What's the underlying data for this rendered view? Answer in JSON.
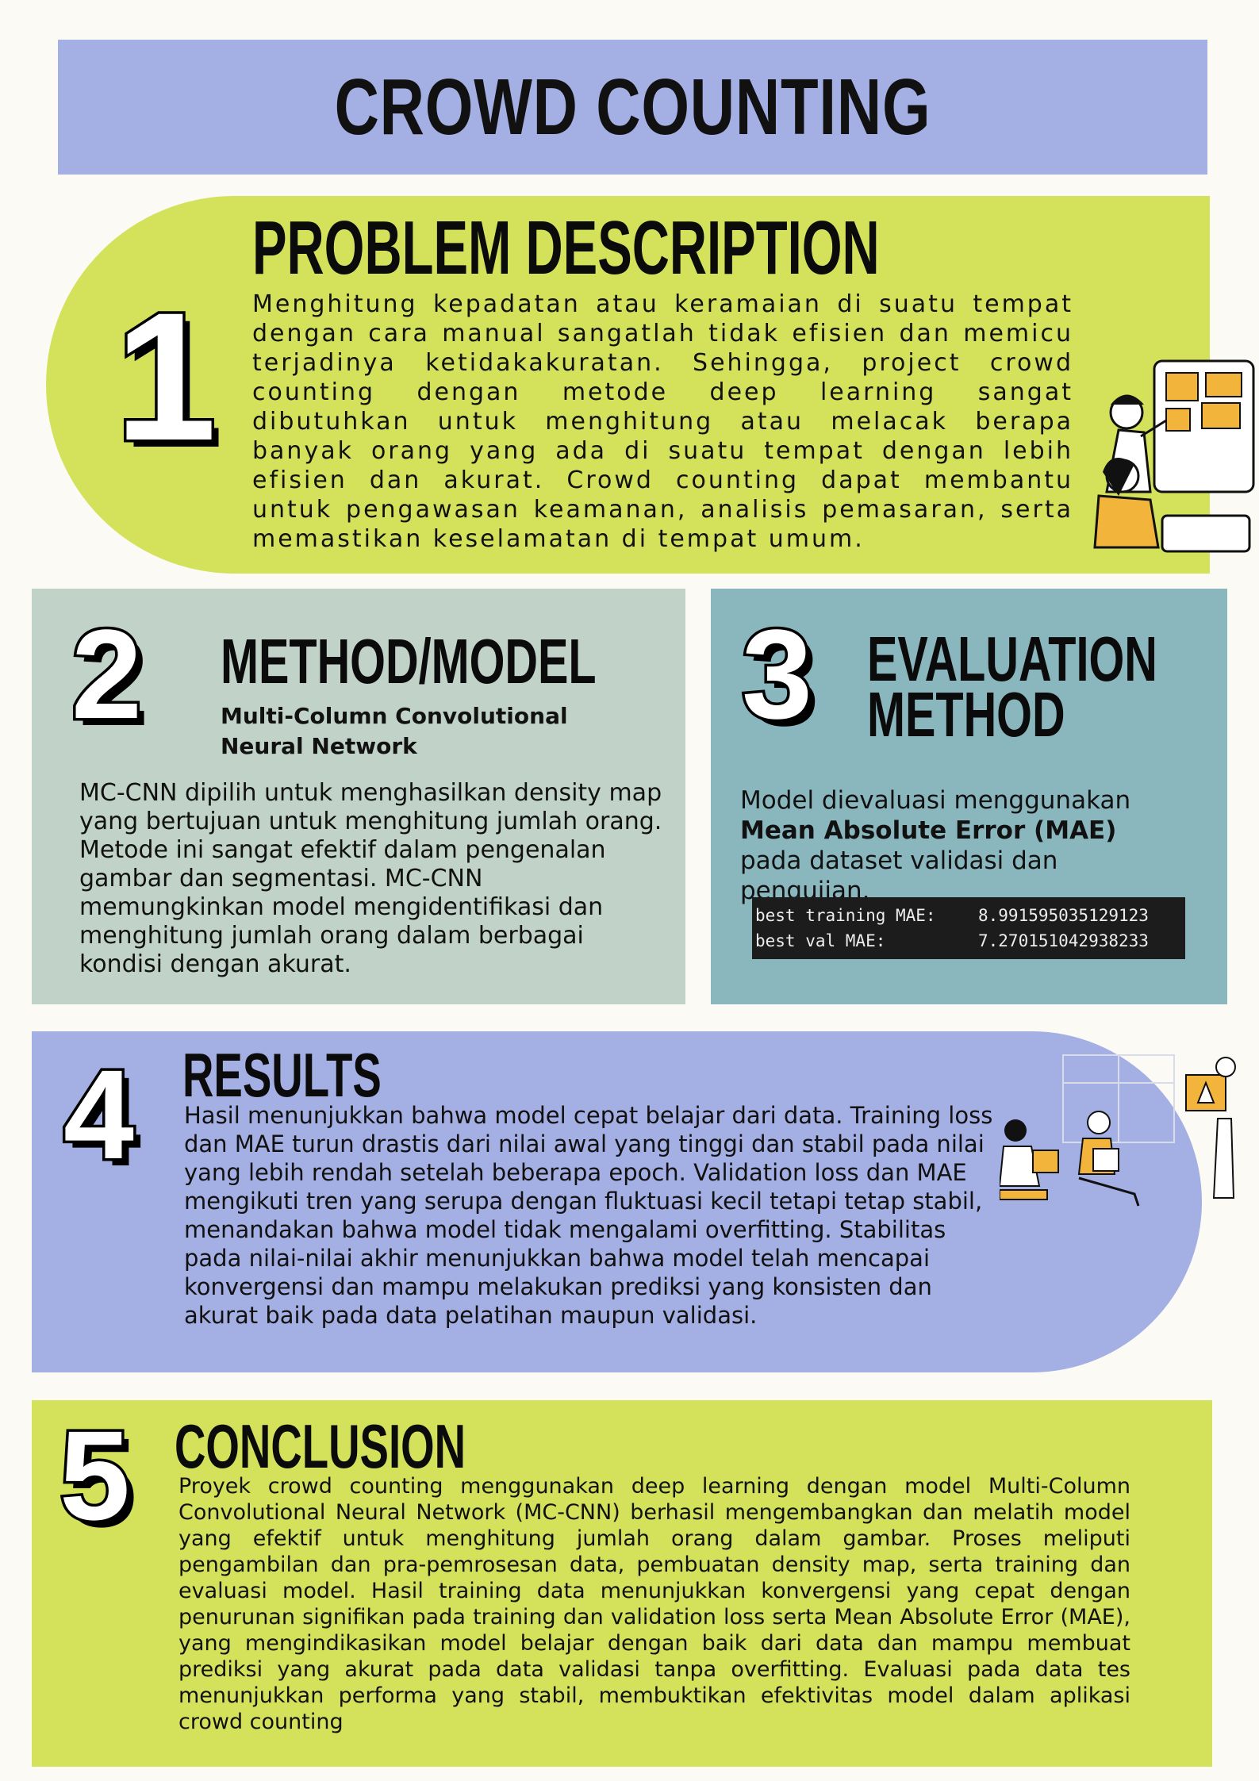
{
  "title": "CROWD COUNTING",
  "section1": {
    "number": "1",
    "title": "PROBLEM DESCRIPTION",
    "body": "Menghitung kepadatan atau keramaian di suatu tempat dengan cara manual sangatlah tidak efisien dan memicu terjadinya ketidakakuratan. Sehingga, project crowd counting dengan metode deep learning sangat dibutuhkan untuk menghitung atau melacak berapa banyak orang yang ada di suatu tempat dengan lebih efisien dan akurat. Crowd counting dapat membantu untuk pengawasan keamanan, analisis pemasaran, serta memastikan keselamatan di tempat umum."
  },
  "section2": {
    "number": "2",
    "title": "METHOD/MODEL",
    "subtitle": "Multi-Column Convolutional Neural Network",
    "body": "MC-CNN dipilih untuk menghasilkan density map yang bertujuan untuk menghitung jumlah orang. Metode ini sangat efektif dalam pengenalan gambar dan segmentasi. MC-CNN memungkinkan model mengidentifikasi dan menghitung jumlah orang dalam berbagai kondisi dengan akurat."
  },
  "section3": {
    "number": "3",
    "title_line1": "EVALUATION",
    "title_line2": "METHOD",
    "body_pre": "Model dievaluasi menggunakan",
    "body_bold": "Mean Absolute Error (MAE)",
    "body_post": "pada dataset validasi dan pengujian.",
    "mae": [
      {
        "label": "best training MAE:",
        "value": "8.991595035129123"
      },
      {
        "label": "best val MAE:",
        "value": "7.270151042938233"
      }
    ]
  },
  "section4": {
    "number": "4",
    "title": "RESULTS",
    "body": "Hasil menunjukkan bahwa model cepat belajar dari data. Training loss dan MAE turun drastis dari nilai awal yang tinggi dan stabil pada nilai yang lebih rendah setelah beberapa epoch. Validation loss dan MAE mengikuti tren yang serupa dengan fluktuasi kecil tetapi tetap stabil, menandakan bahwa model tidak mengalami overfitting. Stabilitas pada nilai-nilai akhir menunjukkan bahwa model telah mencapai konvergensi dan mampu melakukan prediksi yang konsisten dan akurat baik pada data pelatihan maupun validasi."
  },
  "section5": {
    "number": "5",
    "title": "CONCLUSION",
    "body": "Proyek crowd counting menggunakan deep learning dengan model Multi-Column Convolutional Neural Network (MC-CNN) berhasil mengembangkan dan melatih model yang efektif untuk menghitung jumlah orang dalam gambar. Proses meliputi pengambilan dan pra-pemrosesan data, pembuatan density map, serta training dan evaluasi model. Hasil training data menunjukkan konvergensi yang cepat dengan penurunan signifikan pada training dan validation loss serta Mean Absolute Error (MAE), yang mengindikasikan model belajar dengan baik dari data dan mampu membuat prediksi yang akurat pada data validasi tanpa overfitting. Evaluasi pada data tes menunjukkan performa yang stabil, membuktikan efektivitas model dalam aplikasi crowd counting"
  },
  "colors": {
    "background": "#fbfaf4",
    "lavender": "#a4afe4",
    "lime": "#d4e25b",
    "sage": "#c1d3c9",
    "teal": "#8ab6be",
    "code_bg": "#1c1c1c",
    "accent_yellow": "#f2b43a"
  },
  "illustrations": [
    "team-puzzle-board-illustration",
    "team-presentation-illustration"
  ]
}
